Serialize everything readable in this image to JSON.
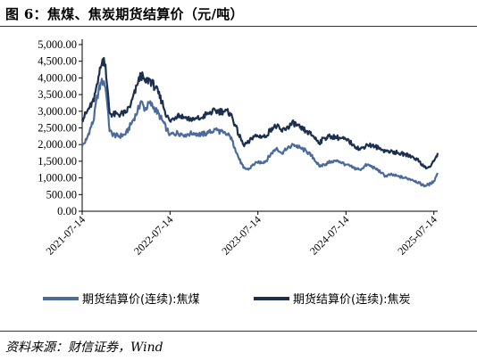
{
  "title": "图 6：焦煤、焦炭期货结算价（元/吨）",
  "source": "资料来源：财信证券，Wind",
  "chart_data": {
    "type": "line",
    "title": "",
    "xlabel": "",
    "ylabel": "",
    "ylim": [
      0,
      5000
    ],
    "yticks": [
      "5,000.00",
      "4,500.00",
      "4,000.00",
      "3,500.00",
      "3,000.00",
      "2,500.00",
      "2,000.00",
      "1,500.00",
      "1,000.00",
      "500.00",
      "0.00"
    ],
    "xticks": [
      "2021-07-14",
      "2022-07-14",
      "2023-07-14",
      "2024-07-14",
      "2025-07-14"
    ],
    "x_range": [
      "2021-07-14",
      "2025-07-30"
    ],
    "grid": false,
    "legend": "bottom",
    "series": [
      {
        "name": "期货结算价(连续):焦煤",
        "color": "#4a6b9c",
        "points": [
          [
            "2021-07-14",
            1950
          ],
          [
            "2021-08-01",
            2150
          ],
          [
            "2021-08-15",
            2450
          ],
          [
            "2021-09-01",
            2750
          ],
          [
            "2021-09-10",
            3300
          ],
          [
            "2021-09-20",
            3600
          ],
          [
            "2021-10-01",
            3850
          ],
          [
            "2021-10-12",
            3900
          ],
          [
            "2021-10-19",
            3700
          ],
          [
            "2021-10-25",
            3300
          ],
          [
            "2021-11-05",
            2400
          ],
          [
            "2021-11-20",
            2300
          ],
          [
            "2021-12-10",
            2250
          ],
          [
            "2022-01-10",
            2300
          ],
          [
            "2022-02-01",
            2600
          ],
          [
            "2022-03-01",
            3000
          ],
          [
            "2022-03-15",
            3300
          ],
          [
            "2022-04-01",
            3050
          ],
          [
            "2022-04-20",
            3250
          ],
          [
            "2022-05-15",
            3050
          ],
          [
            "2022-06-10",
            2750
          ],
          [
            "2022-07-01",
            2450
          ],
          [
            "2022-07-14",
            2300
          ],
          [
            "2022-08-15",
            2350
          ],
          [
            "2022-09-15",
            2300
          ],
          [
            "2022-10-20",
            2350
          ],
          [
            "2022-11-20",
            2300
          ],
          [
            "2022-12-20",
            2350
          ],
          [
            "2023-01-20",
            2450
          ],
          [
            "2023-02-20",
            2350
          ],
          [
            "2023-03-20",
            2250
          ],
          [
            "2023-04-10",
            1900
          ],
          [
            "2023-04-25",
            1600
          ],
          [
            "2023-05-15",
            1300
          ],
          [
            "2023-06-05",
            1250
          ],
          [
            "2023-06-25",
            1400
          ],
          [
            "2023-07-14",
            1450
          ],
          [
            "2023-08-15",
            1500
          ],
          [
            "2023-09-10",
            1750
          ],
          [
            "2023-10-01",
            1900
          ],
          [
            "2023-10-20",
            1750
          ],
          [
            "2023-11-10",
            1850
          ],
          [
            "2023-12-10",
            2000
          ],
          [
            "2024-01-05",
            1900
          ],
          [
            "2024-02-01",
            1800
          ],
          [
            "2024-03-01",
            1600
          ],
          [
            "2024-03-25",
            1350
          ],
          [
            "2024-04-15",
            1400
          ],
          [
            "2024-05-15",
            1500
          ],
          [
            "2024-06-15",
            1500
          ],
          [
            "2024-07-14",
            1400
          ],
          [
            "2024-08-15",
            1300
          ],
          [
            "2024-09-10",
            1250
          ],
          [
            "2024-10-10",
            1400
          ],
          [
            "2024-11-10",
            1300
          ],
          [
            "2024-12-10",
            1150
          ],
          [
            "2024-12-25",
            1050
          ],
          [
            "2025-01-15",
            1100
          ],
          [
            "2025-02-15",
            1050
          ],
          [
            "2025-03-15",
            1000
          ],
          [
            "2025-04-15",
            950
          ],
          [
            "2025-05-15",
            850
          ],
          [
            "2025-06-01",
            770
          ],
          [
            "2025-06-15",
            780
          ],
          [
            "2025-07-01",
            830
          ],
          [
            "2025-07-14",
            900
          ],
          [
            "2025-07-24",
            1050
          ],
          [
            "2025-07-30",
            1150
          ]
        ]
      },
      {
        "name": "期货结算价(连续):焦炭",
        "color": "#1b2f4f",
        "points": [
          [
            "2021-07-14",
            2750
          ],
          [
            "2021-08-01",
            2950
          ],
          [
            "2021-08-15",
            3150
          ],
          [
            "2021-09-01",
            3300
          ],
          [
            "2021-09-10",
            3700
          ],
          [
            "2021-09-20",
            4050
          ],
          [
            "2021-10-01",
            4350
          ],
          [
            "2021-10-12",
            4600
          ],
          [
            "2021-10-19",
            4400
          ],
          [
            "2021-10-25",
            3800
          ],
          [
            "2021-11-05",
            2950
          ],
          [
            "2021-11-20",
            2900
          ],
          [
            "2021-12-10",
            2900
          ],
          [
            "2022-01-10",
            2950
          ],
          [
            "2022-02-01",
            3200
          ],
          [
            "2022-03-01",
            3800
          ],
          [
            "2022-03-15",
            4100
          ],
          [
            "2022-04-01",
            3900
          ],
          [
            "2022-04-20",
            3950
          ],
          [
            "2022-05-15",
            3700
          ],
          [
            "2022-06-10",
            3300
          ],
          [
            "2022-07-01",
            2850
          ],
          [
            "2022-07-14",
            2700
          ],
          [
            "2022-08-15",
            2900
          ],
          [
            "2022-09-15",
            2800
          ],
          [
            "2022-10-20",
            2750
          ],
          [
            "2022-11-20",
            2800
          ],
          [
            "2022-12-20",
            2950
          ],
          [
            "2023-01-20",
            3000
          ],
          [
            "2023-02-20",
            3000
          ],
          [
            "2023-03-20",
            2950
          ],
          [
            "2023-04-10",
            2600
          ],
          [
            "2023-04-25",
            2300
          ],
          [
            "2023-05-15",
            2000
          ],
          [
            "2023-06-05",
            2050
          ],
          [
            "2023-06-25",
            2250
          ],
          [
            "2023-07-14",
            2250
          ],
          [
            "2023-08-15",
            2250
          ],
          [
            "2023-09-10",
            2500
          ],
          [
            "2023-10-01",
            2550
          ],
          [
            "2023-10-20",
            2400
          ],
          [
            "2023-11-10",
            2500
          ],
          [
            "2023-12-10",
            2650
          ],
          [
            "2024-01-05",
            2500
          ],
          [
            "2024-02-01",
            2400
          ],
          [
            "2024-03-01",
            2250
          ],
          [
            "2024-03-25",
            2050
          ],
          [
            "2024-04-15",
            2200
          ],
          [
            "2024-05-15",
            2250
          ],
          [
            "2024-06-15",
            2200
          ],
          [
            "2024-07-14",
            2150
          ],
          [
            "2024-08-15",
            2000
          ],
          [
            "2024-09-10",
            1850
          ],
          [
            "2024-10-10",
            2000
          ],
          [
            "2024-11-10",
            1950
          ],
          [
            "2024-12-10",
            1850
          ],
          [
            "2024-12-25",
            1800
          ],
          [
            "2025-01-15",
            1800
          ],
          [
            "2025-02-15",
            1750
          ],
          [
            "2025-03-15",
            1700
          ],
          [
            "2025-04-15",
            1650
          ],
          [
            "2025-05-15",
            1500
          ],
          [
            "2025-06-01",
            1350
          ],
          [
            "2025-06-15",
            1300
          ],
          [
            "2025-07-01",
            1350
          ],
          [
            "2025-07-14",
            1500
          ],
          [
            "2025-07-24",
            1650
          ],
          [
            "2025-07-30",
            1750
          ]
        ]
      }
    ]
  }
}
